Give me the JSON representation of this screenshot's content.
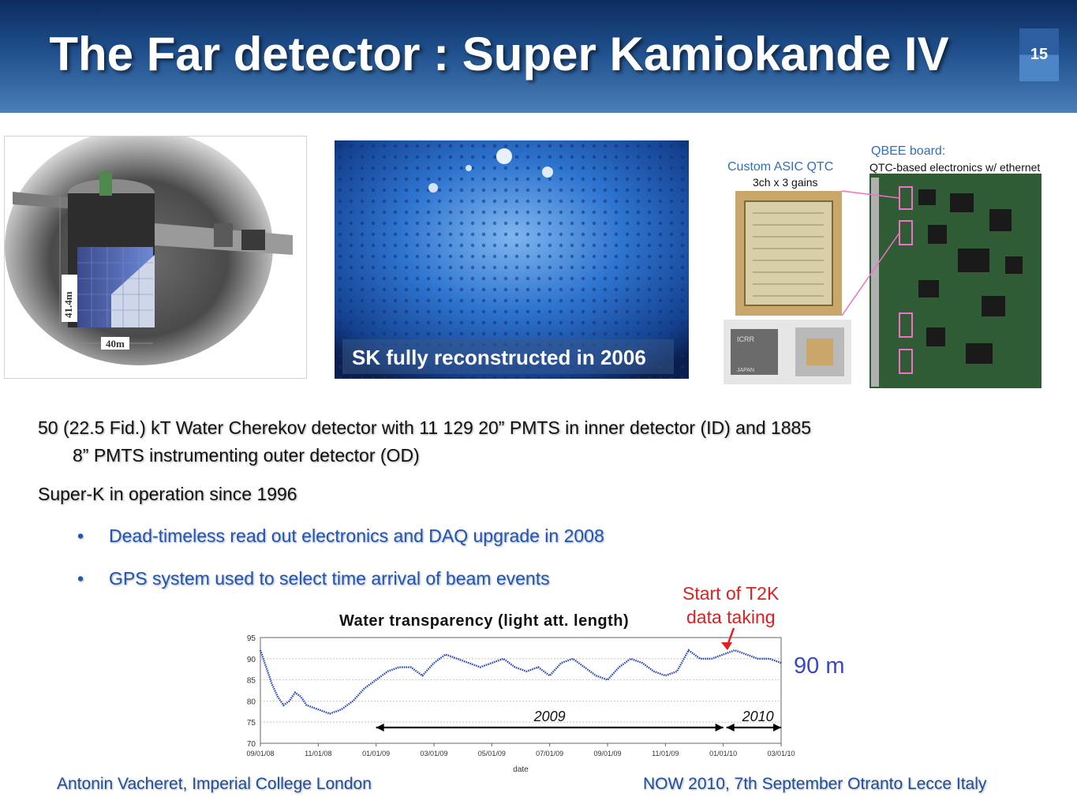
{
  "slide": {
    "title": "The Far detector : Super Kamiokande IV",
    "page_number": "15"
  },
  "figures": {
    "detector_diagram": {
      "height_label": "41.4m",
      "width_label": "40m"
    },
    "photo": {
      "caption": "SK fully reconstructed in 2006"
    },
    "electronics": {
      "asic_title": "Custom ASIC QTC",
      "asic_sub": "3ch x 3 gains",
      "board_title": "QBEE board:",
      "board_sub": "QTC-based electronics w/ ethernet",
      "chip_text_1": "ICRR",
      "chip_text_2": "JAPAN"
    }
  },
  "body": {
    "para1_line1": "50 (22.5 Fid.) kT Water Cherekov detector with 11 129 20” PMTS in inner detector (ID) and 1885",
    "para1_line2": "8” PMTS instrumenting outer detector (OD)",
    "para2": "Super-K in operation since 1996",
    "bullet_char": "•",
    "bullet1": "Dead-timeless read out electronics and DAQ  upgrade in 2008",
    "bullet2": "GPS system used to select time arrival of beam events"
  },
  "chart_data": {
    "type": "line",
    "title": "Water transparency (light att. length)",
    "xlabel": "date",
    "ylabel": "",
    "x_ticks": [
      "09/01/08",
      "11/01/08",
      "01/01/09",
      "03/01/09",
      "05/01/09",
      "07/01/09",
      "09/01/09",
      "11/01/09",
      "01/01/10",
      "03/01/10"
    ],
    "y_ticks": [
      70,
      75,
      80,
      85,
      90,
      95
    ],
    "ylim": [
      70,
      95
    ],
    "x": [
      0.0,
      0.1,
      0.2,
      0.3,
      0.4,
      0.5,
      0.6,
      0.7,
      0.8,
      1.0,
      1.2,
      1.4,
      1.6,
      1.8,
      2.0,
      2.2,
      2.4,
      2.6,
      2.8,
      3.0,
      3.2,
      3.4,
      3.6,
      3.8,
      4.0,
      4.2,
      4.4,
      4.6,
      4.8,
      5.0,
      5.2,
      5.4,
      5.6,
      5.8,
      6.0,
      6.2,
      6.4,
      6.6,
      6.8,
      7.0,
      7.2,
      7.4,
      7.6,
      7.8,
      8.0,
      8.2,
      8.4,
      8.6,
      8.8,
      9.0
    ],
    "values": [
      92,
      88,
      84,
      81,
      79,
      80,
      82,
      81,
      79,
      78,
      77,
      78,
      80,
      83,
      85,
      87,
      88,
      88,
      86,
      89,
      91,
      90,
      89,
      88,
      89,
      90,
      88,
      87,
      88,
      86,
      89,
      90,
      88,
      86,
      85,
      88,
      90,
      89,
      87,
      86,
      87,
      92,
      90,
      90,
      91,
      92,
      91,
      90,
      90,
      89
    ],
    "annotations": [
      {
        "text": "Start of T2K data taking",
        "color": "#e02020"
      },
      {
        "text": "2009"
      },
      {
        "text": "2010"
      }
    ],
    "side_label": "90 m",
    "line_color": "#1e3fc8"
  },
  "footer": {
    "left": "Antonin Vacheret, Imperial College London",
    "right": "NOW 2010, 7th September Otranto Lecce Italy"
  }
}
